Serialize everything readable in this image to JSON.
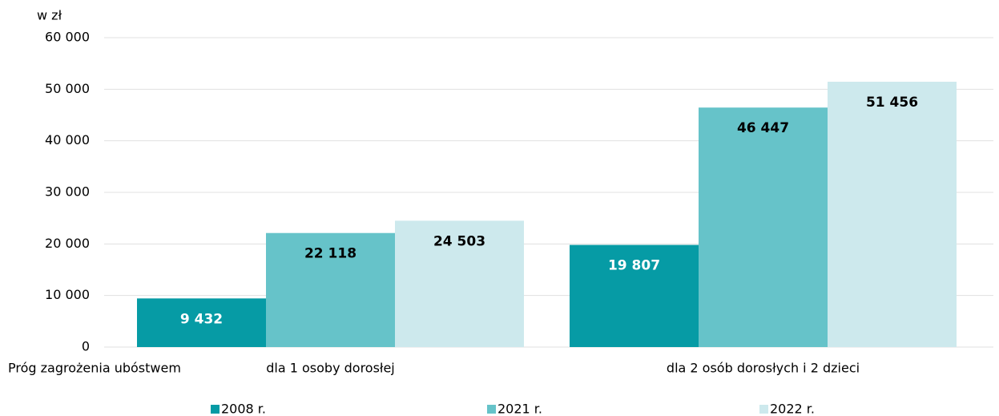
{
  "chart_data": {
    "type": "bar",
    "y_axis_label": "w zł",
    "x_axis_label": "Próg zagrożenia ubóstwem",
    "categories": [
      "dla 1 osoby dorosłej",
      "dla 2 osób dorosłych i 2 dzieci"
    ],
    "series": [
      {
        "name": "2008 r.",
        "color": "#069ba5",
        "label_color": "#ffffff",
        "values": [
          9432,
          19807
        ],
        "value_labels": [
          "9 432",
          "19 807"
        ]
      },
      {
        "name": "2021 r.",
        "color": "#66c3c9",
        "label_color": "#000000",
        "values": [
          22118,
          46447
        ],
        "value_labels": [
          "22 118",
          "46 447"
        ]
      },
      {
        "name": "2022 r.",
        "color": "#cde9ed",
        "label_color": "#000000",
        "values": [
          24503,
          51456
        ],
        "value_labels": [
          "24 503",
          "51 456"
        ]
      }
    ],
    "ylim": [
      0,
      60000
    ],
    "yticks": [
      0,
      {
        "value": 10000,
        "label": "10 000"
      },
      {
        "value": 20000,
        "label": "20 000"
      },
      {
        "value": 30000,
        "label": "30 000"
      },
      {
        "value": 40000,
        "label": "40 000"
      },
      {
        "value": 50000,
        "label": "50 000"
      },
      {
        "value": 60000,
        "label": "60 000"
      }
    ],
    "grid": true,
    "legend": "bottom"
  }
}
